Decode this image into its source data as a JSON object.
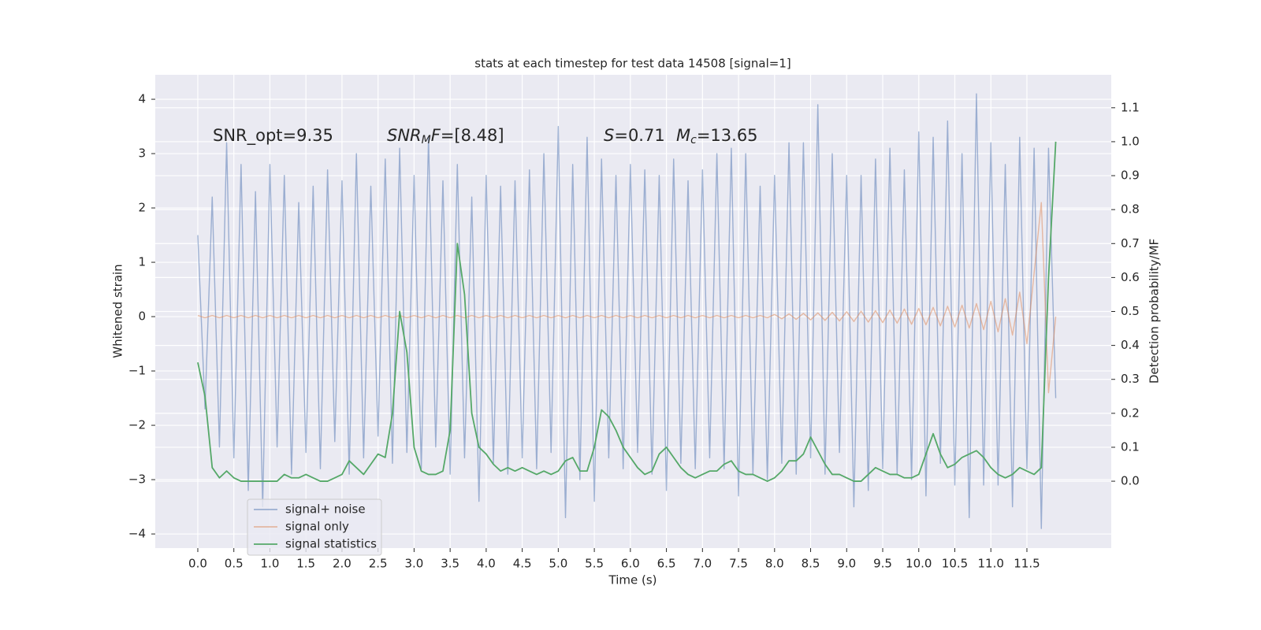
{
  "chart_data": {
    "type": "line",
    "title": "stats at each timestep for test data 14508 [signal=1]",
    "xlabel": "Time (s)",
    "ylabel": "Whitened strain",
    "y2label": "Detection probability/MF",
    "annotations": [
      {
        "parts": [
          "SNR_opt=9.35"
        ]
      },
      {
        "parts": [
          "SNR",
          "M",
          "F",
          "=[8.48]"
        ]
      },
      {
        "parts": [
          "S",
          "=0.71"
        ]
      },
      {
        "parts": [
          "M",
          "c",
          "=13.65"
        ]
      }
    ],
    "legend": "lower left",
    "grid": true,
    "xlim": [
      -0.59,
      12.67
    ],
    "ylim": [
      -4.26,
      4.45
    ],
    "y2lim": [
      -0.197,
      1.197
    ],
    "xticks": [
      {
        "value": 0,
        "label": "0.0"
      },
      0.5,
      {
        "value": 1,
        "label": "1.0"
      },
      1.5,
      {
        "value": 2,
        "label": "2.0"
      },
      2.5,
      {
        "value": 3,
        "label": "3.0"
      },
      3.5,
      {
        "value": 4,
        "label": "4.0"
      },
      4.5,
      {
        "value": 5,
        "label": "5.0"
      },
      5.5,
      {
        "value": 6,
        "label": "6.0"
      },
      6.5,
      {
        "value": 7,
        "label": "7.0"
      },
      7.5,
      {
        "value": 8,
        "label": "8.0"
      },
      8.5,
      {
        "value": 9,
        "label": "9.0"
      },
      9.5,
      {
        "value": 10,
        "label": "10.0"
      },
      10.5,
      {
        "value": 11,
        "label": "11.0"
      },
      11.5
    ],
    "yticks": [
      {
        "value": -4,
        "label": "−4"
      },
      {
        "value": -3,
        "label": "−3"
      },
      {
        "value": -2,
        "label": "−2"
      },
      {
        "value": -1,
        "label": "−1"
      },
      0,
      1,
      2,
      3,
      4
    ],
    "y2ticks": [
      {
        "value": 0,
        "label": "0.0"
      },
      0.1,
      0.2,
      0.3,
      0.4,
      0.5,
      0.6,
      0.7,
      0.8,
      0.9,
      {
        "value": 1,
        "label": "1.0"
      },
      1.1
    ],
    "x": [
      0.0,
      0.1,
      0.2,
      0.3,
      0.4,
      0.5,
      0.6,
      0.7,
      0.8,
      0.9,
      1.0,
      1.1,
      1.2,
      1.3,
      1.4,
      1.5,
      1.6,
      1.7,
      1.8,
      1.9,
      2.0,
      2.1,
      2.2,
      2.3,
      2.4,
      2.5,
      2.6,
      2.7,
      2.8,
      2.9,
      3.0,
      3.1,
      3.2,
      3.3,
      3.4,
      3.5,
      3.6,
      3.7,
      3.8,
      3.9,
      4.0,
      4.1,
      4.2,
      4.3,
      4.4,
      4.5,
      4.6,
      4.7,
      4.8,
      4.9,
      5.0,
      5.1,
      5.2,
      5.3,
      5.4,
      5.5,
      5.6,
      5.7,
      5.8,
      5.9,
      6.0,
      6.1,
      6.2,
      6.3,
      6.4,
      6.5,
      6.6,
      6.7,
      6.8,
      6.9,
      7.0,
      7.1,
      7.2,
      7.3,
      7.4,
      7.5,
      7.6,
      7.7,
      7.8,
      7.9,
      8.0,
      8.1,
      8.2,
      8.3,
      8.4,
      8.5,
      8.6,
      8.7,
      8.8,
      8.9,
      9.0,
      9.1,
      9.2,
      9.3,
      9.4,
      9.5,
      9.6,
      9.7,
      9.8,
      9.9,
      10.0,
      10.1,
      10.2,
      10.3,
      10.4,
      10.5,
      10.6,
      10.7,
      10.8,
      10.9,
      11.0,
      11.1,
      11.2,
      11.3,
      11.4,
      11.5,
      11.6,
      11.7,
      11.8,
      11.9
    ],
    "series": [
      {
        "name": "signal+ noise",
        "color": "#4c72b0",
        "values": [
          1.5,
          -1.7,
          2.2,
          -2.4,
          3.2,
          -2.6,
          2.8,
          -3.2,
          2.3,
          -3.5,
          2.8,
          -2.4,
          2.6,
          -2.9,
          2.1,
          -2.5,
          2.4,
          -2.8,
          2.7,
          -2.3,
          2.5,
          -2.9,
          3.0,
          -2.6,
          2.4,
          -2.2,
          2.9,
          -2.7,
          3.1,
          -2.5,
          2.6,
          -2.8,
          3.3,
          -2.4,
          2.5,
          -2.9,
          2.8,
          -2.6,
          2.2,
          -3.4,
          2.6,
          -2.7,
          2.4,
          -2.9,
          2.5,
          -2.6,
          2.7,
          -2.8,
          3.0,
          -2.5,
          3.5,
          -3.7,
          2.8,
          -3.0,
          3.3,
          -3.4,
          2.9,
          -2.6,
          2.6,
          -2.8,
          2.8,
          -2.5,
          2.7,
          -2.9,
          2.6,
          -3.2,
          2.9,
          -2.7,
          2.5,
          -2.8,
          2.7,
          -2.6,
          3.0,
          -2.8,
          3.1,
          -3.3,
          3.0,
          -2.9,
          2.4,
          -3.0,
          2.6,
          -2.7,
          3.2,
          -2.9,
          3.2,
          -2.6,
          3.9,
          -2.9,
          3.0,
          -2.5,
          2.6,
          -3.5,
          2.6,
          -3.2,
          2.9,
          -2.8,
          3.1,
          -2.9,
          2.7,
          -3.0,
          3.4,
          -3.3,
          3.3,
          -2.7,
          3.6,
          -3.1,
          3.0,
          -3.7,
          4.1,
          -3.1,
          3.2,
          -3.1,
          2.8,
          -3.5,
          3.3,
          -2.8,
          3.1,
          -3.9,
          3.1,
          -1.5
        ]
      },
      {
        "name": "signal only",
        "color": "#dd8452",
        "values": [
          0.02,
          -0.02,
          0.02,
          -0.02,
          0.02,
          -0.02,
          0.02,
          -0.02,
          0.02,
          -0.02,
          0.02,
          -0.02,
          0.02,
          -0.02,
          0.02,
          -0.02,
          0.02,
          -0.02,
          0.02,
          -0.02,
          0.02,
          -0.02,
          0.02,
          -0.02,
          0.02,
          -0.02,
          0.02,
          -0.02,
          0.02,
          -0.02,
          0.02,
          -0.02,
          0.02,
          -0.02,
          0.02,
          -0.02,
          0.02,
          -0.02,
          0.02,
          -0.02,
          0.02,
          -0.02,
          0.02,
          -0.02,
          0.02,
          -0.02,
          0.02,
          -0.02,
          0.02,
          -0.02,
          0.02,
          -0.02,
          0.02,
          -0.02,
          0.02,
          -0.02,
          0.02,
          -0.02,
          0.02,
          -0.02,
          0.02,
          -0.02,
          0.02,
          -0.02,
          0.02,
          -0.02,
          0.02,
          -0.02,
          0.02,
          -0.02,
          0.02,
          -0.02,
          0.02,
          -0.02,
          0.02,
          -0.02,
          0.02,
          -0.02,
          0.02,
          -0.02,
          0.04,
          -0.04,
          0.05,
          -0.05,
          0.06,
          -0.06,
          0.07,
          -0.07,
          0.08,
          -0.08,
          0.09,
          -0.09,
          0.1,
          -0.1,
          0.11,
          -0.11,
          0.12,
          -0.12,
          0.14,
          -0.14,
          0.15,
          -0.15,
          0.17,
          -0.17,
          0.19,
          -0.19,
          0.21,
          -0.21,
          0.24,
          -0.24,
          0.28,
          -0.28,
          0.33,
          -0.34,
          0.45,
          -0.5,
          0.8,
          2.1,
          -1.4,
          0.0
        ]
      },
      {
        "name": "signal statistics",
        "color": "#55a868",
        "axis": "y2",
        "values": [
          0.35,
          0.25,
          0.04,
          0.01,
          0.03,
          0.01,
          0.0,
          0.0,
          0.0,
          0.0,
          0.0,
          0.0,
          0.02,
          0.01,
          0.01,
          0.02,
          0.01,
          0.0,
          0.0,
          0.01,
          0.02,
          0.06,
          0.04,
          0.02,
          0.05,
          0.08,
          0.07,
          0.2,
          0.5,
          0.38,
          0.1,
          0.03,
          0.02,
          0.02,
          0.03,
          0.15,
          0.7,
          0.55,
          0.2,
          0.1,
          0.08,
          0.05,
          0.03,
          0.04,
          0.03,
          0.04,
          0.03,
          0.02,
          0.03,
          0.02,
          0.03,
          0.06,
          0.07,
          0.03,
          0.03,
          0.1,
          0.21,
          0.19,
          0.15,
          0.1,
          0.07,
          0.04,
          0.02,
          0.03,
          0.08,
          0.1,
          0.07,
          0.04,
          0.02,
          0.01,
          0.02,
          0.03,
          0.03,
          0.05,
          0.06,
          0.03,
          0.02,
          0.02,
          0.01,
          0.0,
          0.01,
          0.03,
          0.06,
          0.06,
          0.08,
          0.13,
          0.09,
          0.05,
          0.02,
          0.02,
          0.01,
          0.0,
          0.0,
          0.02,
          0.04,
          0.03,
          0.02,
          0.02,
          0.01,
          0.01,
          0.02,
          0.08,
          0.14,
          0.08,
          0.04,
          0.05,
          0.07,
          0.08,
          0.09,
          0.07,
          0.04,
          0.02,
          0.01,
          0.02,
          0.04,
          0.03,
          0.02,
          0.04,
          0.6,
          1.0
        ]
      }
    ]
  }
}
